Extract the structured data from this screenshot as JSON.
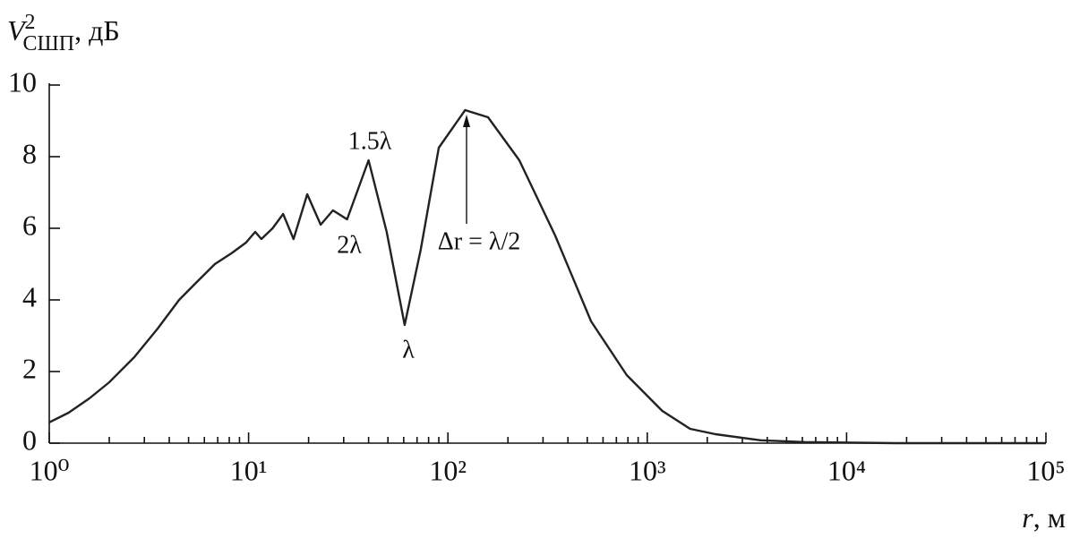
{
  "chart_data": {
    "type": "line",
    "ylabel": {
      "symbol": "V",
      "sup": "2",
      "sub": "СШП",
      "unit": ", дБ"
    },
    "xlabel": {
      "symbol": "r",
      "unit": ", м"
    },
    "x": [
      1,
      1.25,
      1.59,
      2,
      2.67,
      3.5,
      4.48,
      5.5,
      6.77,
      8.2,
      9.7,
      10.8,
      11.6,
      13.2,
      14.9,
      16.8,
      19.7,
      23,
      26.5,
      31.2,
      40,
      49.3,
      60.7,
      73,
      90,
      122,
      159,
      228,
      345,
      523,
      789,
      1190,
      1640,
      2200,
      3700,
      6200,
      17500,
      100000
    ],
    "series": [
      {
        "name": "V2",
        "color": "#222222",
        "values": [
          0.58,
          0.85,
          1.25,
          1.7,
          2.4,
          3.2,
          4.0,
          4.5,
          5.0,
          5.3,
          5.6,
          5.9,
          5.7,
          6.0,
          6.4,
          5.7,
          6.95,
          6.1,
          6.5,
          6.25,
          7.9,
          5.9,
          3.3,
          5.4,
          8.25,
          9.3,
          9.1,
          7.9,
          5.8,
          3.4,
          1.9,
          0.9,
          0.4,
          0.25,
          0.08,
          0.03,
          0,
          0
        ]
      }
    ],
    "xscale": "log",
    "xlim": [
      1,
      100000
    ],
    "xticks": [
      {
        "value": 1,
        "label": "10⁰"
      },
      {
        "value": 10,
        "label": "10¹"
      },
      {
        "value": 100,
        "label": "10²"
      },
      {
        "value": 1000,
        "label": "10³"
      },
      {
        "value": 10000,
        "label": "10⁴"
      },
      {
        "value": 100000,
        "label": "10⁵"
      }
    ],
    "ylim": [
      0,
      10
    ],
    "yticks": [
      0,
      2,
      4,
      6,
      8,
      10
    ],
    "annotations": [
      "1.5λ",
      "2λ",
      "λ",
      "Δr = λ/2"
    ]
  }
}
